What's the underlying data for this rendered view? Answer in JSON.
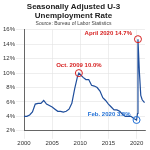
{
  "chart_data": {
    "type": "line",
    "title": [
      "Seasonally Adjusted U-3",
      "Unemployment Rate"
    ],
    "subtitle": "Source: Bureau of Labor Statistics",
    "x": [
      2000.0,
      2000.5,
      2001.0,
      2001.5,
      2002.0,
      2002.5,
      2003.0,
      2003.5,
      2004.0,
      2004.5,
      2005.0,
      2005.5,
      2006.0,
      2006.5,
      2007.0,
      2007.5,
      2008.0,
      2008.5,
      2009.0,
      2009.5,
      2009.75,
      2010.0,
      2010.5,
      2011.0,
      2011.5,
      2012.0,
      2012.5,
      2013.0,
      2013.5,
      2014.0,
      2014.5,
      2015.0,
      2015.5,
      2016.0,
      2016.5,
      2017.0,
      2017.5,
      2018.0,
      2018.5,
      2019.0,
      2019.5,
      2020.0,
      2020.17,
      2020.25,
      2020.5,
      2020.75,
      2021.0,
      2021.42
    ],
    "values": [
      4.0,
      4.0,
      4.2,
      4.6,
      5.7,
      5.8,
      5.8,
      6.2,
      5.7,
      5.5,
      5.3,
      5.0,
      4.7,
      4.7,
      4.6,
      4.7,
      5.0,
      5.8,
      7.8,
      9.5,
      10.0,
      9.8,
      9.4,
      9.1,
      9.1,
      8.3,
      8.2,
      8.0,
      7.5,
      6.6,
      6.2,
      5.7,
      5.3,
      4.9,
      4.9,
      4.7,
      4.3,
      4.0,
      4.0,
      4.0,
      3.7,
      3.5,
      4.4,
      14.7,
      10.2,
      6.9,
      6.3,
      5.9
    ],
    "color": "#1f4e9c",
    "xlim": [
      2000,
      2021.5
    ],
    "xticks": [
      2000,
      2005,
      2010,
      2015,
      2020
    ],
    "ylim": [
      2,
      16
    ],
    "yticks": [
      {
        "value": 2,
        "label": "2%"
      },
      {
        "value": 4,
        "label": "4%"
      },
      {
        "value": 6,
        "label": "6%"
      },
      {
        "value": 8,
        "label": "8%"
      },
      {
        "value": 10,
        "label": "10%"
      },
      {
        "value": 12,
        "label": "12%"
      },
      {
        "value": 14,
        "label": "14%"
      },
      {
        "value": 16,
        "label": "16%"
      }
    ],
    "grid": true,
    "annotations": [
      {
        "text": "Oct. 2009 10.0%",
        "x": 2009.75,
        "value": 10.0,
        "color": "#d62020"
      },
      {
        "text": "April 2020 14.7%",
        "x": 2020.25,
        "value": 14.7,
        "color": "#d62020"
      },
      {
        "text": "Feb. 2020 3.5%",
        "x": 2020.0,
        "value": 3.5,
        "color": "#1f6fd6"
      }
    ]
  }
}
